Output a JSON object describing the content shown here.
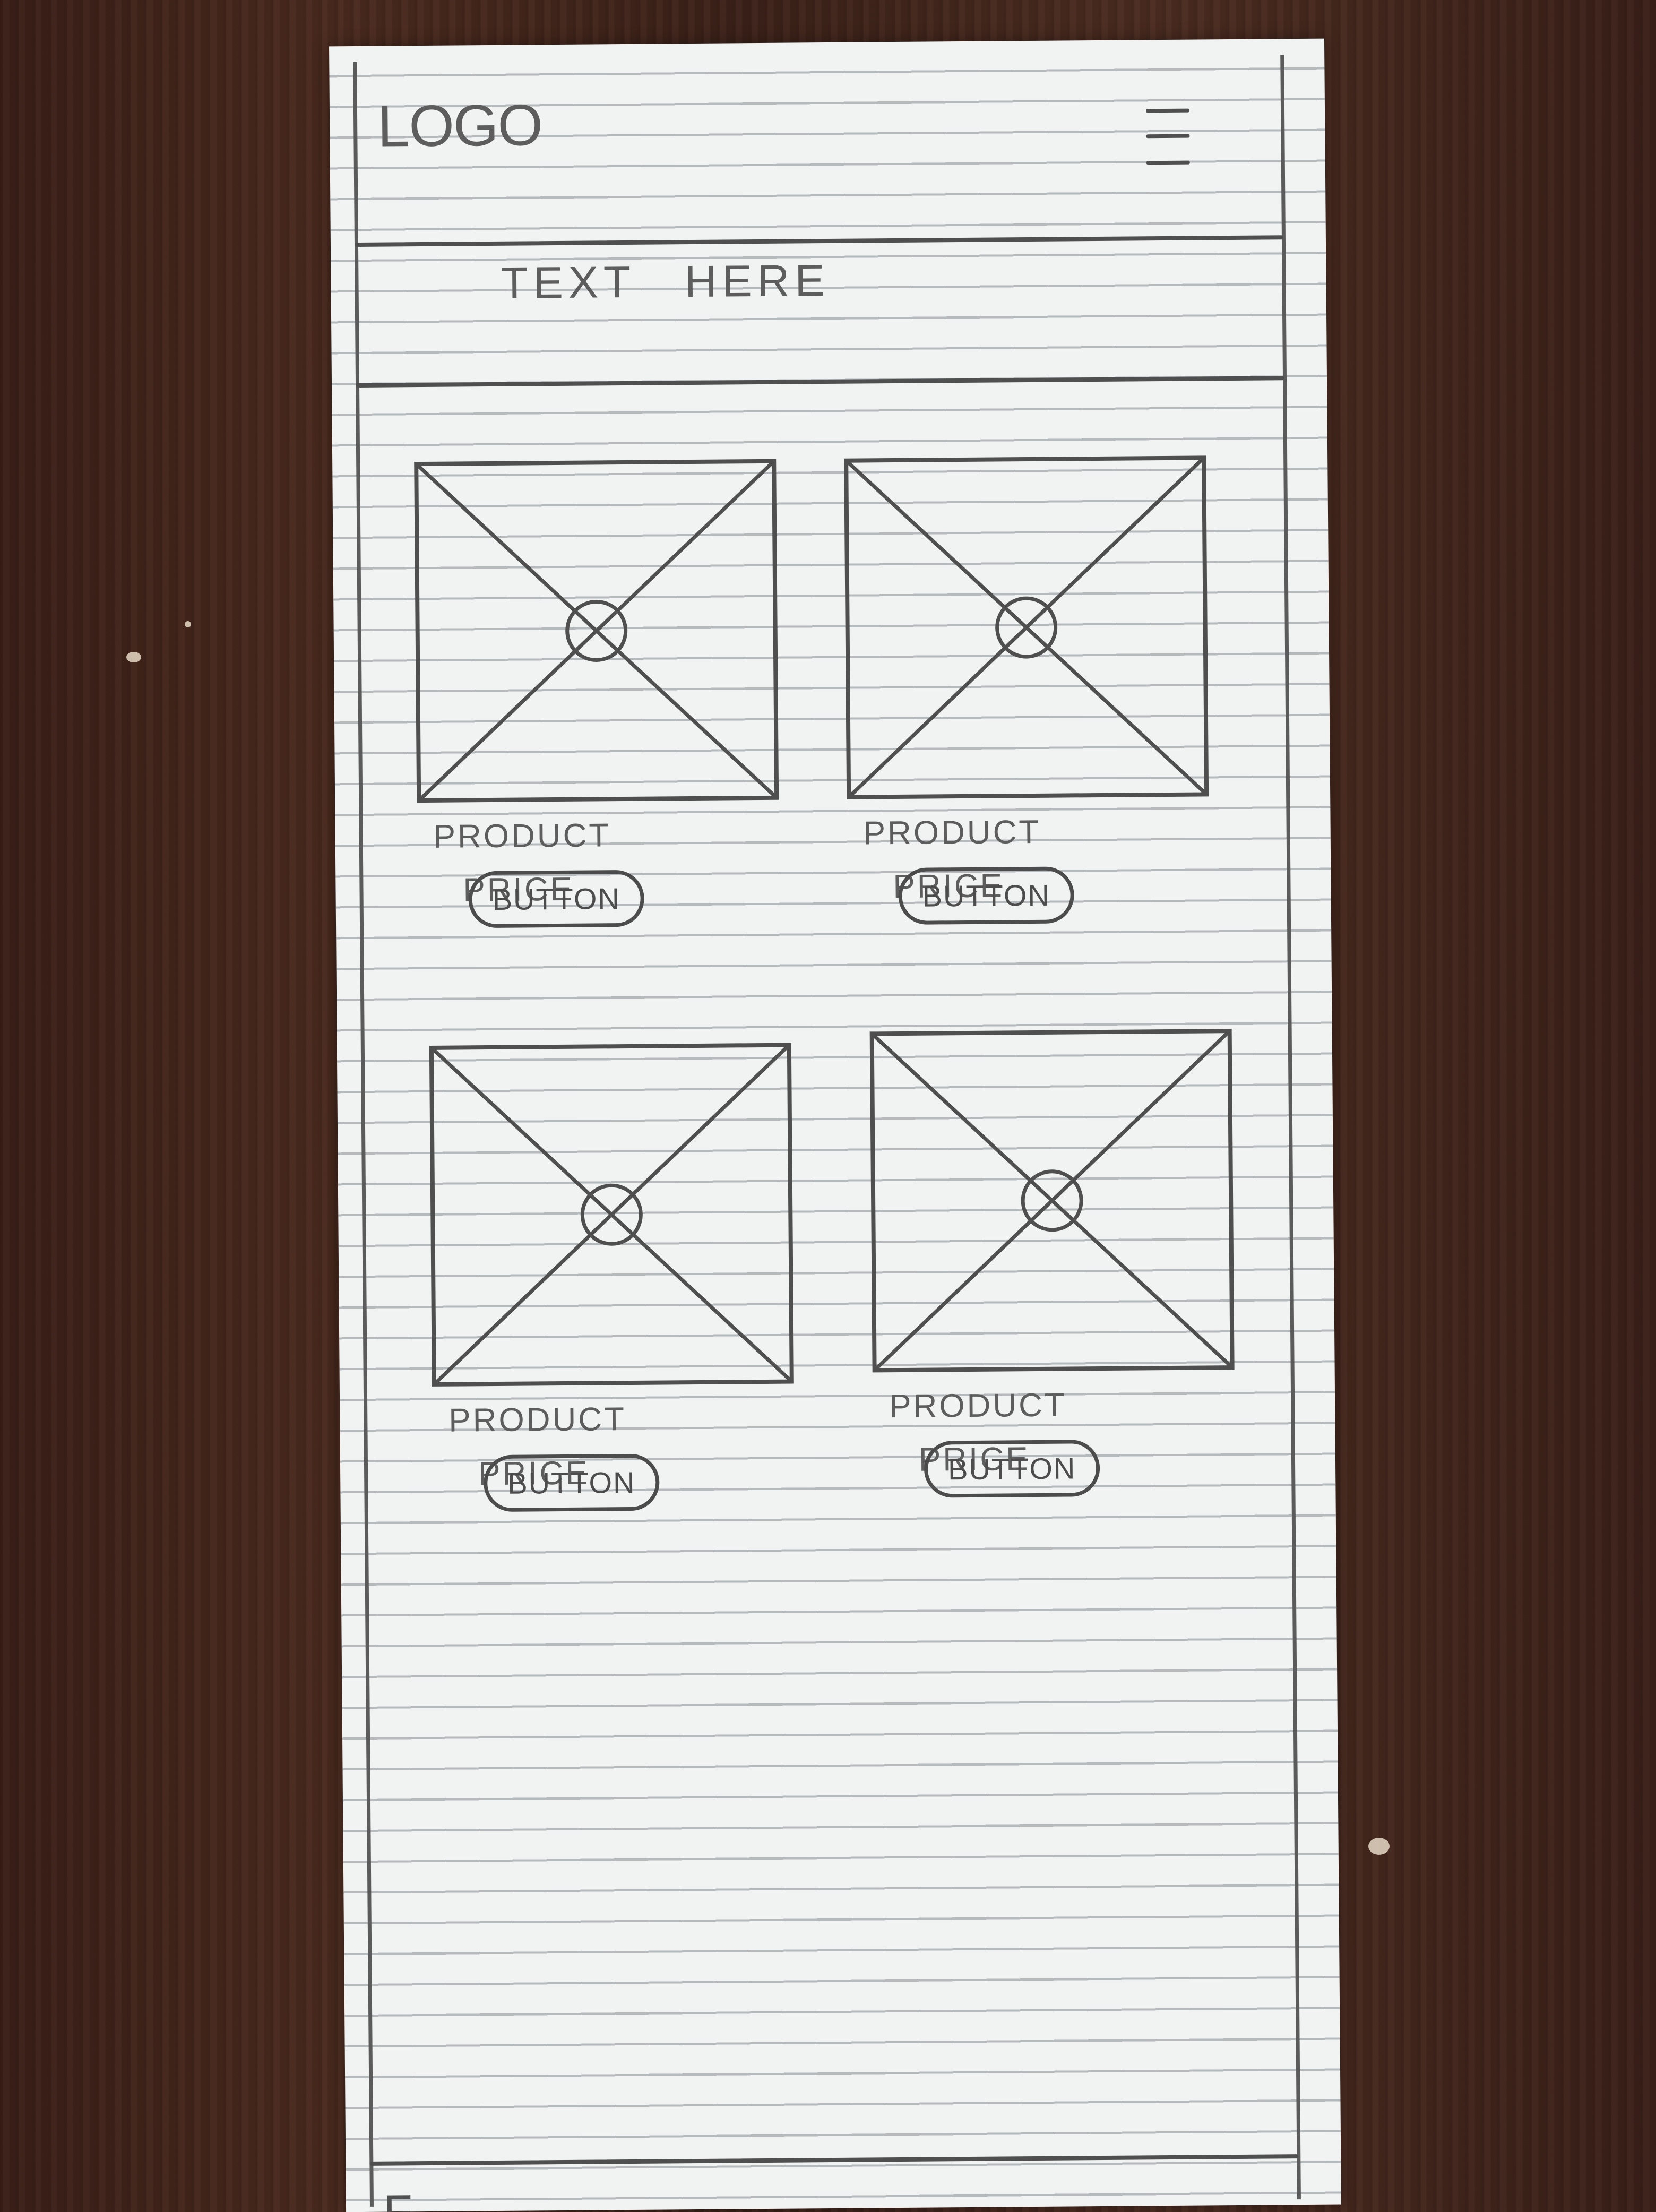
{
  "header": {
    "logo": "LOGO",
    "menu_icon": "hamburger-menu-icon"
  },
  "hero": {
    "text": "TEXT HERE"
  },
  "products": [
    {
      "name": "PRODUCT",
      "price": "PRICE",
      "button": "BUTTON"
    },
    {
      "name": "PRODUCT",
      "price": "PRICE",
      "button": "BUTTON"
    },
    {
      "name": "PRODUCT",
      "price": "PRICE",
      "button": "BUTTON"
    },
    {
      "name": "PRODUCT",
      "price": "PRICE",
      "button": "BUTTON"
    }
  ],
  "footer": {
    "text": "F"
  },
  "colors": {
    "paper": "#f1f2f2",
    "pencil": "#5b5b5b",
    "wood": "#3f2419"
  }
}
